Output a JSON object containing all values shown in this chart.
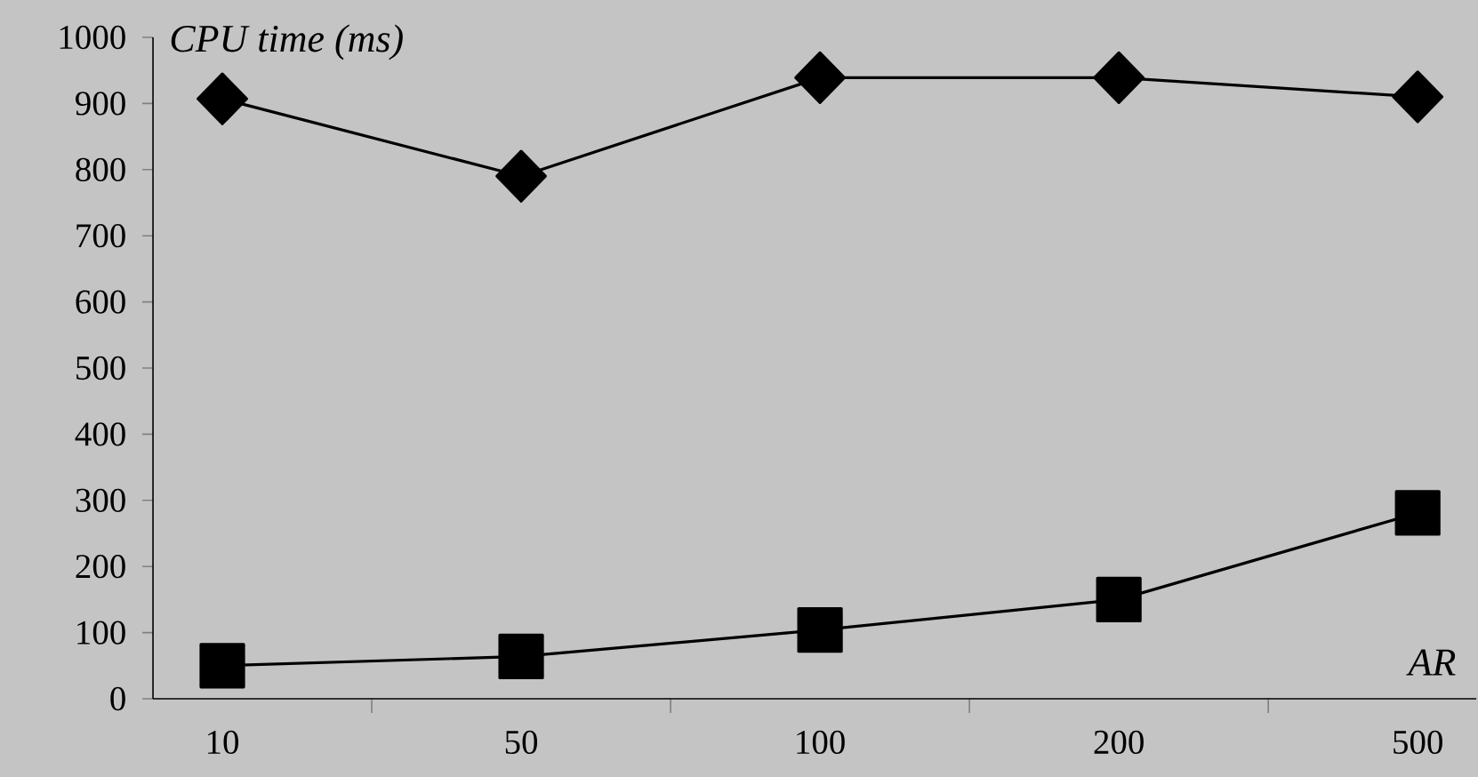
{
  "chart_data": {
    "type": "line",
    "xlabel": "AR",
    "ylabel": "CPU time (ms)",
    "categories": [
      "10",
      "50",
      "100",
      "200",
      "500"
    ],
    "ylim": [
      0,
      1000
    ],
    "yticks": [
      0,
      100,
      200,
      300,
      400,
      500,
      600,
      700,
      800,
      900,
      1000
    ],
    "series": [
      {
        "color": "#000000",
        "marker": "diamond",
        "values": [
          907,
          790,
          939,
          939,
          910
        ]
      },
      {
        "color": "#000000",
        "marker": "square",
        "values": [
          50,
          64,
          104,
          150,
          281
        ]
      }
    ]
  }
}
